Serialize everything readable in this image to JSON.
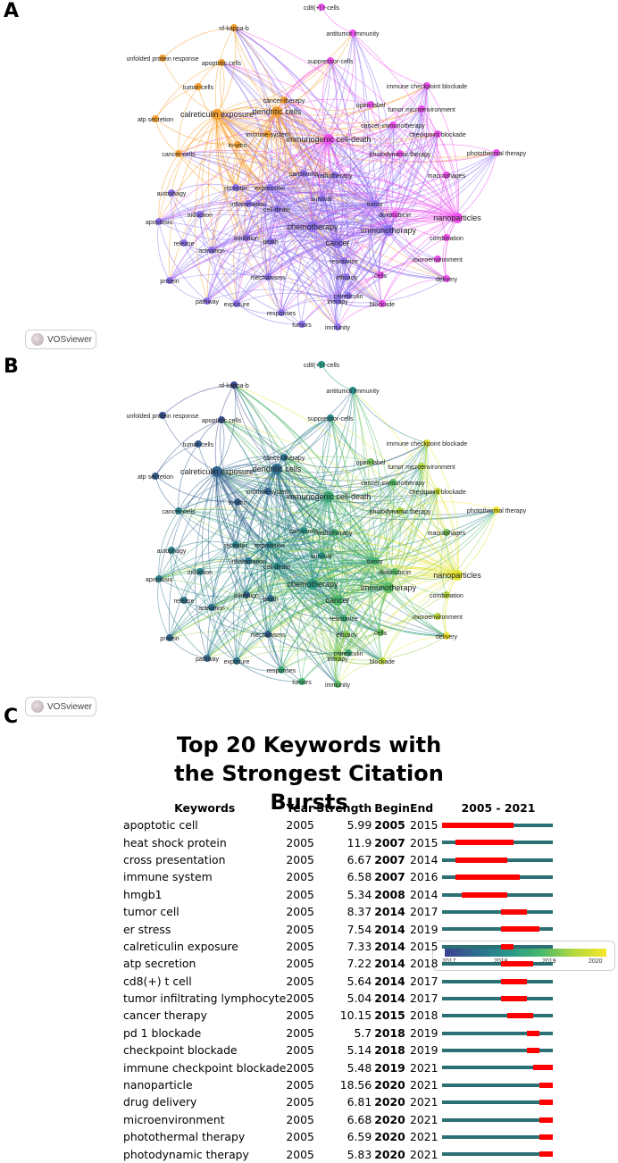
{
  "panels": {
    "a_letter": "A",
    "b_letter": "B",
    "c_letter": "C"
  },
  "vosviewer_label": "VOSviewer",
  "colorbar": {
    "ticks": [
      "2017",
      "2018",
      "2019",
      "2020"
    ],
    "colors": [
      "#3b3f8f",
      "#27978a",
      "#48b86b",
      "#f5e728"
    ]
  },
  "cluster_colors": {
    "orange": "#f5a030",
    "purple": "#8f72f0",
    "magenta": "#f050f0"
  },
  "network_nodes": [
    {
      "label": "cd8(+) t-cells",
      "cluster": "magenta",
      "year": 2018.3
    },
    {
      "label": "nf-kappa-b",
      "cluster": "orange",
      "year": 2016.8
    },
    {
      "label": "antitumor immunity",
      "cluster": "magenta",
      "year": 2018.0
    },
    {
      "label": "unfolded protein response",
      "cluster": "orange",
      "year": 2017.0
    },
    {
      "label": "apoptotic cells",
      "cluster": "orange",
      "year": 2017.0
    },
    {
      "label": "suppressor-cells",
      "cluster": "magenta",
      "year": 2018.0
    },
    {
      "label": "tumor-cells",
      "cluster": "orange",
      "year": 2017.2
    },
    {
      "label": "cancer-therapy",
      "cluster": "orange",
      "year": 2017.5
    },
    {
      "label": "immune checkpoint blockade",
      "cluster": "magenta",
      "year": 2020.0
    },
    {
      "label": "open-label",
      "cluster": "magenta",
      "year": 2019.2
    },
    {
      "label": "tumor microenvironment",
      "cluster": "magenta",
      "year": 2019.6
    },
    {
      "label": "dendritic cells",
      "cluster": "orange",
      "year": 2017.5
    },
    {
      "label": "atp secretion",
      "cluster": "orange",
      "year": 2017.2
    },
    {
      "label": "calreticulin exposure",
      "cluster": "orange",
      "year": 2017.3
    },
    {
      "label": "cancer-immunotherapy",
      "cluster": "magenta",
      "year": 2019.0
    },
    {
      "label": "immune-system",
      "cluster": "orange",
      "year": 2017.3
    },
    {
      "label": "checkpoint blockade",
      "cluster": "magenta",
      "year": 2019.8
    },
    {
      "label": "immunogenic cell-death",
      "cluster": "magenta",
      "year": 2018.6
    },
    {
      "label": "in-vitro",
      "cluster": "orange",
      "year": 2017.3
    },
    {
      "label": "photothermal therapy",
      "cluster": "magenta",
      "year": 2020.3
    },
    {
      "label": "cancer-cells",
      "cluster": "orange",
      "year": 2017.8
    },
    {
      "label": "photodynamic therapy",
      "cluster": "magenta",
      "year": 2019.5
    },
    {
      "label": "carcinoma",
      "cluster": "purple",
      "year": 2018.2
    },
    {
      "label": "radiotherapy",
      "cluster": "purple",
      "year": 2018.7
    },
    {
      "label": "macrophages",
      "cluster": "magenta",
      "year": 2019.2
    },
    {
      "label": "receptor",
      "cluster": "purple",
      "year": 2017.8
    },
    {
      "label": "expression",
      "cluster": "purple",
      "year": 2017.9
    },
    {
      "label": "autophagy",
      "cluster": "purple",
      "year": 2017.9
    },
    {
      "label": "inflammation",
      "cluster": "purple",
      "year": 2017.7
    },
    {
      "label": "survival",
      "cluster": "purple",
      "year": 2018.2
    },
    {
      "label": "cell-death",
      "cluster": "purple",
      "year": 2018.0
    },
    {
      "label": "tumor",
      "cluster": "purple",
      "year": 2018.8
    },
    {
      "label": "apoptosis",
      "cluster": "purple",
      "year": 2017.8
    },
    {
      "label": "induction",
      "cluster": "purple",
      "year": 2017.9
    },
    {
      "label": "doxorubicin",
      "cluster": "magenta",
      "year": 2019.0
    },
    {
      "label": "chemotherapy",
      "cluster": "purple",
      "year": 2018.3
    },
    {
      "label": "nanoparticles",
      "cluster": "magenta",
      "year": 2020.1
    },
    {
      "label": "immunotherapy",
      "cluster": "purple",
      "year": 2019.0
    },
    {
      "label": "inhibition",
      "cluster": "purple",
      "year": 2017.4
    },
    {
      "label": "release",
      "cluster": "purple",
      "year": 2017.6
    },
    {
      "label": "death",
      "cluster": "purple",
      "year": 2017.5
    },
    {
      "label": "cancer",
      "cluster": "purple",
      "year": 2018.9
    },
    {
      "label": "combination",
      "cluster": "magenta",
      "year": 2019.6
    },
    {
      "label": "activation",
      "cluster": "purple",
      "year": 2017.6
    },
    {
      "label": "resistance",
      "cluster": "purple",
      "year": 2018.6
    },
    {
      "label": "microenvironment",
      "cluster": "magenta",
      "year": 2019.7
    },
    {
      "label": "protein",
      "cluster": "purple",
      "year": 2017.4
    },
    {
      "label": "mechanisms",
      "cluster": "purple",
      "year": 2017.2
    },
    {
      "label": "efficacy",
      "cluster": "purple",
      "year": 2019.3
    },
    {
      "label": "cells",
      "cluster": "magenta",
      "year": 2019.1
    },
    {
      "label": "delivery",
      "cluster": "magenta",
      "year": 2020.3
    },
    {
      "label": "calreticulin",
      "cluster": "purple",
      "year": 2018.6
    },
    {
      "label": "pathway",
      "cluster": "purple",
      "year": 2017.4
    },
    {
      "label": "exposure",
      "cluster": "purple",
      "year": 2017.6
    },
    {
      "label": "therapy",
      "cluster": "purple",
      "year": 2019.4
    },
    {
      "label": "responses",
      "cluster": "purple",
      "year": 2018.6
    },
    {
      "label": "blockade",
      "cluster": "magenta",
      "year": 2019.7
    },
    {
      "label": "tumors",
      "cluster": "purple",
      "year": 2018.8
    },
    {
      "label": "immunity",
      "cluster": "purple",
      "year": 2019.0
    }
  ],
  "chart_data": {
    "type": "table",
    "title": "Top 20 Keywords with the Strongest Citation Bursts",
    "columns": [
      "Keywords",
      "Year",
      "Strength",
      "Begin",
      "End",
      "2005 - 2021"
    ],
    "timeline_range": [
      2005,
      2021
    ],
    "rows": [
      {
        "keyword": "apoptotic cell",
        "year": "2005",
        "strength": "5.99",
        "begin": "2005",
        "end": "2015"
      },
      {
        "keyword": "heat shock protein",
        "year": "2005",
        "strength": "11.9",
        "begin": "2007",
        "end": "2015"
      },
      {
        "keyword": "cross presentation",
        "year": "2005",
        "strength": "6.67",
        "begin": "2007",
        "end": "2014"
      },
      {
        "keyword": "immune system",
        "year": "2005",
        "strength": "6.58",
        "begin": "2007",
        "end": "2016"
      },
      {
        "keyword": "hmgb1",
        "year": "2005",
        "strength": "5.34",
        "begin": "2008",
        "end": "2014"
      },
      {
        "keyword": "tumor cell",
        "year": "2005",
        "strength": "8.37",
        "begin": "2014",
        "end": "2017"
      },
      {
        "keyword": "er stress",
        "year": "2005",
        "strength": "7.54",
        "begin": "2014",
        "end": "2019"
      },
      {
        "keyword": "calreticulin exposure",
        "year": "2005",
        "strength": "7.33",
        "begin": "2014",
        "end": "2015"
      },
      {
        "keyword": "atp secretion",
        "year": "2005",
        "strength": "7.22",
        "begin": "2014",
        "end": "2018"
      },
      {
        "keyword": "cd8(+) t cell",
        "year": "2005",
        "strength": "5.64",
        "begin": "2014",
        "end": "2017"
      },
      {
        "keyword": "tumor infiltrating lymphocyte",
        "year": "2005",
        "strength": "5.04",
        "begin": "2014",
        "end": "2017"
      },
      {
        "keyword": "cancer therapy",
        "year": "2005",
        "strength": "10.15",
        "begin": "2015",
        "end": "2018"
      },
      {
        "keyword": "pd 1 blockade",
        "year": "2005",
        "strength": "5.7",
        "begin": "2018",
        "end": "2019"
      },
      {
        "keyword": "checkpoint blockade",
        "year": "2005",
        "strength": "5.14",
        "begin": "2018",
        "end": "2019"
      },
      {
        "keyword": "immune checkpoint blockade",
        "year": "2005",
        "strength": "5.48",
        "begin": "2019",
        "end": "2021"
      },
      {
        "keyword": "nanoparticle",
        "year": "2005",
        "strength": "18.56",
        "begin": "2020",
        "end": "2021"
      },
      {
        "keyword": "drug delivery",
        "year": "2005",
        "strength": "6.81",
        "begin": "2020",
        "end": "2021"
      },
      {
        "keyword": "microenvironment",
        "year": "2005",
        "strength": "6.68",
        "begin": "2020",
        "end": "2021"
      },
      {
        "keyword": "photothermal therapy",
        "year": "2005",
        "strength": "6.59",
        "begin": "2020",
        "end": "2021"
      },
      {
        "keyword": "photodynamic therapy",
        "year": "2005",
        "strength": "5.83",
        "begin": "2020",
        "end": "2021"
      }
    ]
  }
}
